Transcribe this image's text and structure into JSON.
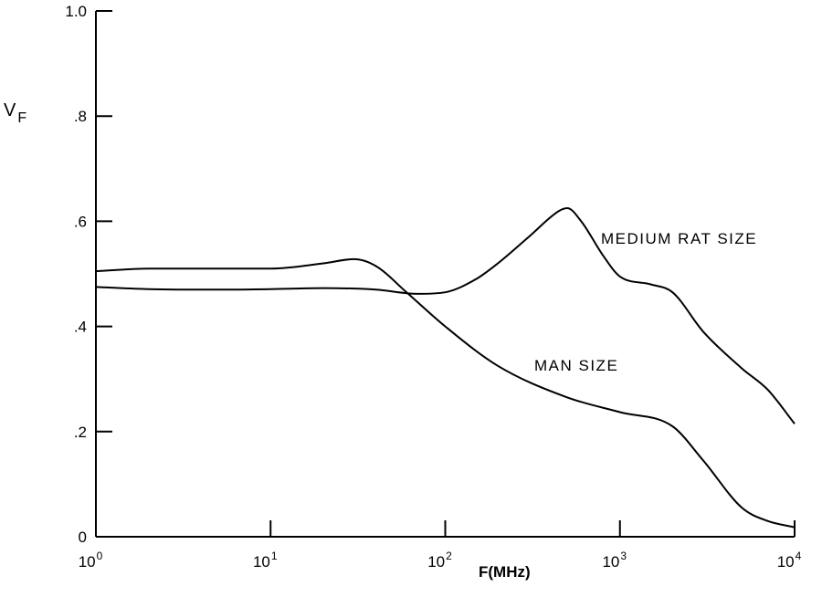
{
  "chart_data": {
    "type": "line",
    "xscale": "log",
    "xlim": [
      1,
      10000
    ],
    "ylim": [
      0,
      1.0
    ],
    "xlabel": "F(MHz)",
    "ylabel": {
      "main": "V",
      "sub": "F"
    },
    "x_ticks": [
      {
        "base": "10",
        "exp": "0"
      },
      {
        "base": "10",
        "exp": "1"
      },
      {
        "base": "10",
        "exp": "2"
      },
      {
        "base": "10",
        "exp": "3"
      },
      {
        "base": "10",
        "exp": "4"
      }
    ],
    "y_tick_labels": [
      "0",
      ".2",
      ".4",
      ".6",
      ".8",
      "1.0"
    ],
    "grid": false,
    "series": [
      {
        "name": "MEDIUM RAT SIZE",
        "x": [
          1,
          2,
          5,
          10,
          20,
          40,
          70,
          100,
          150,
          200,
          300,
          450,
          500,
          600,
          800,
          1000,
          1500,
          2000,
          3000,
          5000,
          7000,
          10000
        ],
        "y": [
          0.475,
          0.471,
          0.47,
          0.471,
          0.473,
          0.47,
          0.462,
          0.465,
          0.49,
          0.52,
          0.57,
          0.62,
          0.625,
          0.6,
          0.535,
          0.495,
          0.48,
          0.465,
          0.39,
          0.32,
          0.28,
          0.215
        ]
      },
      {
        "name": "MAN SIZE",
        "x": [
          1,
          2,
          5,
          10,
          20,
          30,
          40,
          60,
          100,
          200,
          500,
          1000,
          2000,
          3000,
          5000,
          7000,
          10000
        ],
        "y": [
          0.505,
          0.51,
          0.51,
          0.51,
          0.52,
          0.528,
          0.515,
          0.465,
          0.4,
          0.325,
          0.265,
          0.237,
          0.21,
          0.145,
          0.055,
          0.03,
          0.018
        ]
      }
    ]
  }
}
